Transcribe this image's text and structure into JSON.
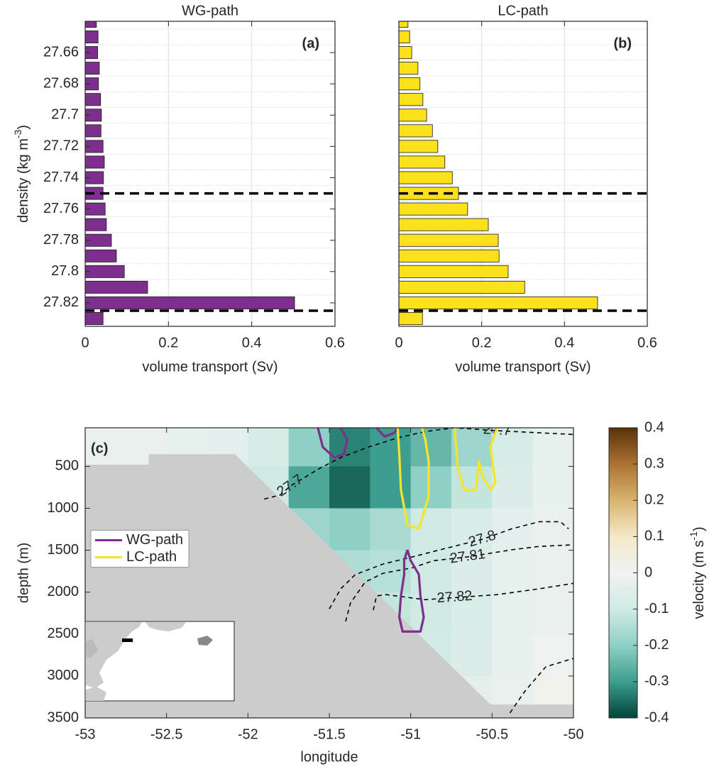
{
  "chart_data": [
    {
      "type": "barh",
      "title": "WG-path",
      "panel_label": "(a)",
      "xlabel": "volume transport (Sv)",
      "ylabel": "density (kg m",
      "ylabel_sup": "-3",
      "ylabel_end": ")",
      "y": [
        27.64,
        27.65,
        27.66,
        27.67,
        27.68,
        27.69,
        27.7,
        27.71,
        27.72,
        27.73,
        27.74,
        27.75,
        27.76,
        27.77,
        27.78,
        27.79,
        27.8,
        27.81,
        27.82,
        27.83
      ],
      "values": [
        0.027,
        0.031,
        0.03,
        0.034,
        0.032,
        0.037,
        0.039,
        0.038,
        0.043,
        0.046,
        0.044,
        0.043,
        0.048,
        0.051,
        0.063,
        0.075,
        0.094,
        0.15,
        0.503,
        0.043
      ],
      "color": "#7e2f8e",
      "xlim": [
        0,
        0.6
      ],
      "xticks": [
        0,
        0.2,
        0.4,
        0.6
      ],
      "ylim": [
        27.835,
        27.64
      ],
      "yticks": [
        27.66,
        27.68,
        27.7,
        27.72,
        27.74,
        27.76,
        27.78,
        27.8,
        27.82
      ],
      "hlines": [
        27.75,
        27.825
      ],
      "grid": true
    },
    {
      "type": "barh",
      "title": "LC-path",
      "panel_label": "(b)",
      "xlabel": "volume transport (Sv)",
      "y": [
        27.64,
        27.65,
        27.66,
        27.67,
        27.68,
        27.69,
        27.7,
        27.71,
        27.72,
        27.73,
        27.74,
        27.75,
        27.76,
        27.77,
        27.78,
        27.79,
        27.8,
        27.81,
        27.82,
        27.83
      ],
      "values": [
        0.022,
        0.026,
        0.031,
        0.046,
        0.051,
        0.058,
        0.067,
        0.081,
        0.094,
        0.111,
        0.129,
        0.144,
        0.166,
        0.216,
        0.24,
        0.242,
        0.264,
        0.304,
        0.48,
        0.057
      ],
      "color": "#fbe11c",
      "xlim": [
        0,
        0.6
      ],
      "xticks": [
        0,
        0.2,
        0.4,
        0.6
      ],
      "ylim": [
        27.835,
        27.64
      ],
      "hlines": [
        27.75,
        27.825
      ],
      "grid": true
    },
    {
      "type": "heatmap",
      "panel_label": "(c)",
      "xlabel": "longitude",
      "ylabel": "depth (m)",
      "x": [
        -52.875,
        -52.625,
        -52.375,
        -52.125,
        -51.875,
        -51.625,
        -51.375,
        -51.125,
        -50.875,
        -50.625,
        -50.375,
        -50.125
      ],
      "y": [
        250,
        750,
        1250,
        1750,
        2250,
        2750,
        3250
      ],
      "z": [
        [
          -0.02,
          -0.02,
          -0.03,
          -0.04,
          -0.08,
          -0.2,
          -0.33,
          -0.3,
          -0.25,
          -0.18,
          -0.08,
          -0.03
        ],
        [
          null,
          null,
          null,
          -0.03,
          -0.1,
          -0.28,
          -0.36,
          -0.3,
          -0.2,
          -0.12,
          -0.06,
          -0.03
        ],
        [
          null,
          null,
          null,
          null,
          -0.08,
          -0.18,
          -0.2,
          -0.16,
          -0.1,
          -0.07,
          -0.04,
          -0.02
        ],
        [
          null,
          null,
          null,
          null,
          null,
          -0.1,
          -0.15,
          -0.14,
          -0.1,
          -0.06,
          -0.03,
          -0.02
        ],
        [
          null,
          null,
          null,
          null,
          null,
          null,
          -0.1,
          -0.12,
          -0.1,
          -0.07,
          -0.03,
          -0.02
        ],
        [
          null,
          null,
          null,
          null,
          null,
          null,
          null,
          -0.1,
          -0.09,
          -0.06,
          -0.03,
          -0.01
        ],
        [
          null,
          null,
          null,
          null,
          null,
          null,
          null,
          null,
          null,
          -0.04,
          -0.02,
          0.01
        ]
      ],
      "xlim": [
        -53,
        -50
      ],
      "xticks": [
        -53,
        -52.5,
        -52,
        -51.5,
        -51,
        -50.5,
        -50
      ],
      "ylim": [
        3500,
        40
      ],
      "yticks": [
        500,
        1000,
        1500,
        2000,
        2500,
        3000,
        3500
      ],
      "clim": [
        -0.4,
        0.4
      ],
      "cticks": [
        -0.4,
        -0.3,
        -0.2,
        -0.1,
        0,
        0.1,
        0.2,
        0.3,
        0.4
      ],
      "clabel": "velocity (m s",
      "clabel_sup": "-1",
      "clabel_end": ")",
      "colormap": [
        "#00453a",
        "#3d9e8f",
        "#8fd0c4",
        "#cfeae5",
        "#f0f2f0",
        "#f5e8c8",
        "#d8b46e",
        "#ab7233",
        "#5a3208"
      ],
      "land": {
        "x": [
          -53,
          -52.61,
          -52.61,
          -52.08,
          -50.51,
          -50,
          -50,
          -53
        ],
        "y": [
          480,
          480,
          355,
          355,
          3340,
          3340,
          3500,
          3500
        ],
        "color": "#cccccc"
      },
      "contours": [
        {
          "level": 27.7,
          "x": [
            -51.9,
            -51.8,
            -51.74,
            -51.56,
            -51.43,
            -51.26,
            -51.08,
            -50.91,
            -50.73,
            -50.47,
            -50.21,
            -50
          ],
          "y": [
            890,
            840,
            735,
            525,
            395,
            270,
            160,
            85,
            40,
            75,
            100,
            120
          ]
        },
        {
          "level": 27.8,
          "x": [
            -51.5,
            -51.43,
            -51.34,
            -51.17,
            -50.99,
            -50.82,
            -50.56,
            -50.38,
            -50.21,
            -50.08,
            -50.03
          ],
          "y": [
            2200,
            1960,
            1790,
            1665,
            1580,
            1495,
            1370,
            1245,
            1160,
            1160,
            1245
          ]
        },
        {
          "level": 27.81,
          "x": [
            -51.4,
            -51.37,
            -51.28,
            -51.17,
            -50.99,
            -50.86,
            -50.65,
            -50.38,
            -50.21,
            -50
          ],
          "y": [
            2350,
            2130,
            1880,
            1775,
            1710,
            1625,
            1580,
            1495,
            1455,
            1435
          ]
        },
        {
          "level": 27.82,
          "x": [
            -51.23,
            -51.21,
            -51.15,
            -50.91,
            -50.73,
            -50.47,
            -50.21,
            -50
          ],
          "y": [
            2215,
            2045,
            2030,
            2090,
            2065,
            2030,
            1960,
            1895
          ]
        },
        {
          "level": null,
          "x": [
            -50.39,
            -50.3,
            -50.17,
            -50
          ],
          "y": [
            3440,
            3185,
            2890,
            2790
          ]
        }
      ],
      "series": [
        {
          "name": "WG-path",
          "color": "#7e2f8e",
          "x": [
            -51.57,
            -51.54,
            -51.47,
            -51.41,
            -51.39,
            -51.43,
            null,
            -51.21,
            -51.16,
            -51.1,
            -51.08,
            null,
            -51.02,
            -51.0,
            -50.95,
            -50.94,
            -50.92,
            -50.94,
            -51.05,
            -51.07,
            -51.06,
            -51.04,
            -51.04,
            -51.02
          ],
          "y": [
            42,
            270,
            395,
            355,
            185,
            42,
            null,
            42,
            145,
            100,
            42,
            null,
            1495,
            1625,
            1790,
            2045,
            2300,
            2470,
            2470,
            2300,
            2045,
            1790,
            1620,
            1495
          ]
        },
        {
          "name": "LC-path",
          "color": "#f5e52a",
          "x": [
            -51.08,
            -51.07,
            -51.06,
            -51.02,
            -50.95,
            -50.89,
            -50.89,
            -50.91,
            -50.93,
            null,
            -50.73,
            -50.71,
            -50.67,
            -50.6,
            -50.58,
            -50.56,
            -50.51,
            -50.48,
            -50.51,
            -50.47
          ],
          "y": [
            42,
            355,
            780,
            1200,
            1245,
            860,
            440,
            185,
            42,
            null,
            42,
            525,
            780,
            780,
            440,
            610,
            780,
            695,
            270,
            42
          ]
        }
      ],
      "legend": "left"
    }
  ]
}
